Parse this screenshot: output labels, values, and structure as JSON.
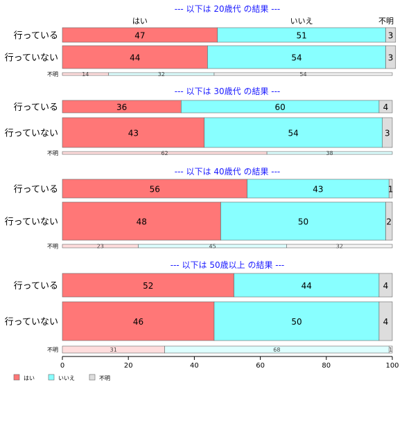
{
  "chart_data": {
    "type": "bar",
    "orientation": "horizontal",
    "stacked": true,
    "percent": true,
    "xlim": [
      0,
      100
    ],
    "xticks": [
      0,
      20,
      40,
      60,
      80,
      100
    ],
    "legend_position": "bottom-left",
    "series": [
      {
        "name": "はい",
        "color": "#ff7777"
      },
      {
        "name": "いいえ",
        "color": "#88ffff"
      },
      {
        "name": "不明",
        "color": "#dddddd"
      }
    ],
    "column_headers": [
      "はい",
      "いいえ",
      "不明"
    ],
    "panels": [
      {
        "title": "--- 以下は 20歳代 の結果 ---",
        "rows": [
          {
            "label": "行っている",
            "values": [
              47,
              51,
              3
            ]
          },
          {
            "label": "行っていない",
            "values": [
              44,
              54,
              3
            ]
          },
          {
            "label": "不明",
            "values": [
              14,
              32,
              54
            ],
            "small": true
          }
        ]
      },
      {
        "title": "--- 以下は 30歳代 の結果 ---",
        "rows": [
          {
            "label": "行っている",
            "values": [
              36,
              60,
              4
            ]
          },
          {
            "label": "行っていない",
            "values": [
              43,
              54,
              3
            ]
          },
          {
            "label": "不明",
            "values": [
              62,
              38,
              0
            ],
            "small": true
          }
        ]
      },
      {
        "title": "--- 以下は 40歳代 の結果 ---",
        "rows": [
          {
            "label": "行っている",
            "values": [
              56,
              43,
              1
            ]
          },
          {
            "label": "行っていない",
            "values": [
              48,
              50,
              2
            ]
          },
          {
            "label": "不明",
            "values": [
              23,
              45,
              32
            ],
            "small": true
          }
        ]
      },
      {
        "title": "--- 以下は 50歳以上 の結果 ---",
        "rows": [
          {
            "label": "行っている",
            "values": [
              52,
              44,
              4
            ]
          },
          {
            "label": "行っていない",
            "values": [
              46,
              50,
              4
            ]
          },
          {
            "label": "不明",
            "values": [
              31,
              68,
              1
            ],
            "small": true
          }
        ]
      }
    ]
  }
}
